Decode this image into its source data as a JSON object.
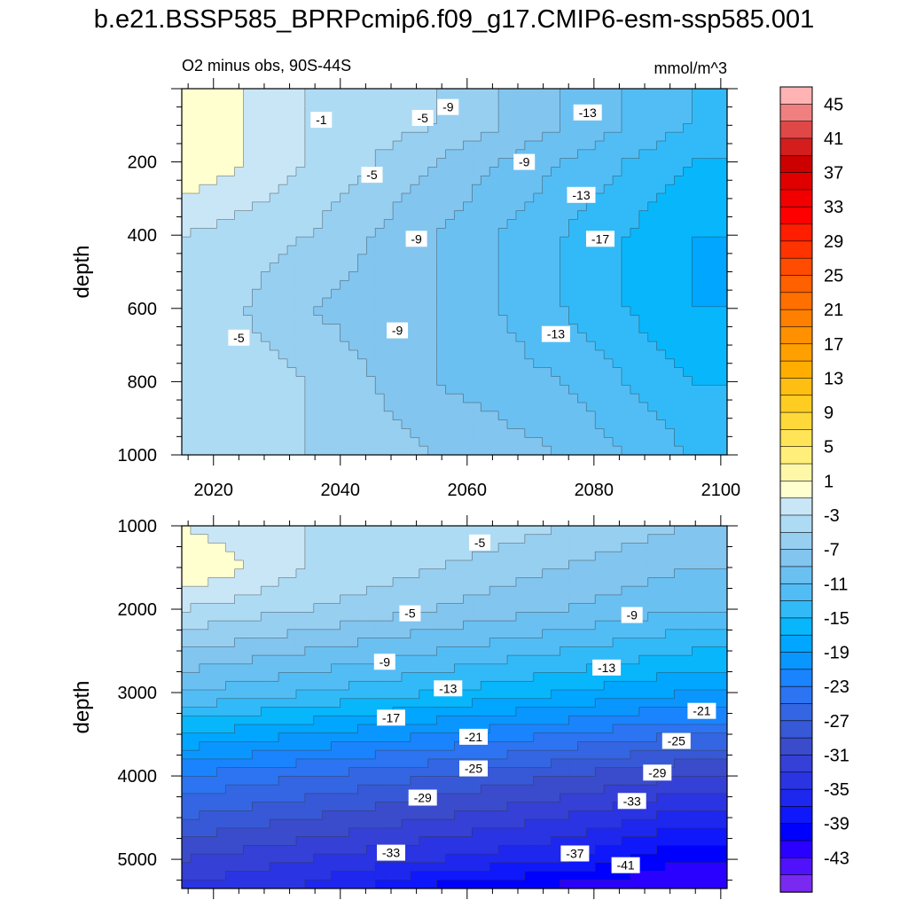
{
  "page": {
    "title": "b.e21.BSSP585_BPRPcmip6.f09_g17.CMIP6-esm-ssp585.001"
  },
  "chart_data": [
    {
      "type": "contour",
      "panel": "upper",
      "title_left": "O2 minus obs, 90S-44S",
      "title_right": "mmol/m^3",
      "xlabel": "",
      "ylabel": "depth",
      "xlim": [
        2015,
        2101
      ],
      "ylim": [
        1000,
        0
      ],
      "xticks": [
        2020,
        2040,
        2060,
        2080,
        2100
      ],
      "yticks": [
        200,
        400,
        600,
        800,
        1000
      ],
      "x": [
        2015,
        2035,
        2055,
        2075,
        2095
      ],
      "depth": [
        100,
        200,
        400,
        600,
        800,
        1000
      ],
      "values": [
        [
          1,
          -3,
          -5,
          -9,
          -13
        ],
        [
          1,
          -3,
          -7,
          -11,
          -15
        ],
        [
          -3,
          -5,
          -9,
          -13,
          -17
        ],
        [
          -3,
          -7,
          -9,
          -13,
          -17
        ],
        [
          -3,
          -5,
          -9,
          -11,
          -15
        ],
        [
          -3,
          -5,
          -7,
          -9,
          -13
        ]
      ],
      "contour_labels": [
        {
          "text": "-1",
          "x": 2037,
          "depth": 85
        },
        {
          "text": "-5",
          "x": 2053,
          "depth": 80
        },
        {
          "text": "-9",
          "x": 2057,
          "depth": 50
        },
        {
          "text": "-13",
          "x": 2079,
          "depth": 65
        },
        {
          "text": "-5",
          "x": 2045,
          "depth": 235
        },
        {
          "text": "-9",
          "x": 2069,
          "depth": 200
        },
        {
          "text": "-13",
          "x": 2078,
          "depth": 290
        },
        {
          "text": "-9",
          "x": 2052,
          "depth": 410
        },
        {
          "text": "-17",
          "x": 2081,
          "depth": 410
        },
        {
          "text": "-5",
          "x": 2024,
          "depth": 680
        },
        {
          "text": "-9",
          "x": 2049,
          "depth": 660
        },
        {
          "text": "-13",
          "x": 2074,
          "depth": 670
        }
      ]
    },
    {
      "type": "contour",
      "panel": "lower",
      "xlabel": "",
      "ylabel": "depth",
      "xlim": [
        2015,
        2101
      ],
      "ylim": [
        5350,
        1000
      ],
      "xticks": [
        2020,
        2040,
        2060,
        2080,
        2100
      ],
      "yticks": [
        1000,
        2000,
        3000,
        4000,
        5000
      ],
      "x": [
        2015,
        2035,
        2055,
        2075,
        2095
      ],
      "depth": [
        1000,
        1500,
        2000,
        3000,
        4000,
        5000,
        5300
      ],
      "values": [
        [
          -1,
          -3,
          -3,
          -5,
          -7
        ],
        [
          1,
          -3,
          -5,
          -7,
          -9
        ],
        [
          -3,
          -5,
          -7,
          -9,
          -11
        ],
        [
          -11,
          -13,
          -15,
          -17,
          -19
        ],
        [
          -23,
          -25,
          -27,
          -29,
          -31
        ],
        [
          -31,
          -33,
          -35,
          -37,
          -41
        ],
        [
          -33,
          -35,
          -39,
          -41,
          -43
        ]
      ],
      "contour_labels": [
        {
          "text": "-5",
          "x": 2062,
          "depth": 1200
        },
        {
          "text": "-5",
          "x": 2051,
          "depth": 2050
        },
        {
          "text": "-9",
          "x": 2086,
          "depth": 2070
        },
        {
          "text": "-9",
          "x": 2047,
          "depth": 2630
        },
        {
          "text": "-13",
          "x": 2082,
          "depth": 2700
        },
        {
          "text": "-13",
          "x": 2057,
          "depth": 2950
        },
        {
          "text": "-17",
          "x": 2048,
          "depth": 3300
        },
        {
          "text": "-21",
          "x": 2097,
          "depth": 3220
        },
        {
          "text": "-21",
          "x": 2061,
          "depth": 3530
        },
        {
          "text": "-25",
          "x": 2093,
          "depth": 3580
        },
        {
          "text": "-25",
          "x": 2061,
          "depth": 3910
        },
        {
          "text": "-29",
          "x": 2090,
          "depth": 3960
        },
        {
          "text": "-29",
          "x": 2053,
          "depth": 4260
        },
        {
          "text": "-33",
          "x": 2086,
          "depth": 4300
        },
        {
          "text": "-33",
          "x": 2048,
          "depth": 4920
        },
        {
          "text": "-37",
          "x": 2077,
          "depth": 4930
        },
        {
          "text": "-41",
          "x": 2085,
          "depth": 5070
        }
      ]
    },
    {
      "type": "colorbar",
      "levels": [
        47,
        45,
        43,
        41,
        39,
        37,
        35,
        33,
        31,
        29,
        27,
        25,
        23,
        21,
        19,
        17,
        15,
        13,
        11,
        9,
        7,
        5,
        3,
        1,
        -1,
        -3,
        -5,
        -7,
        -9,
        -11,
        -13,
        -15,
        -17,
        -19,
        -21,
        -23,
        -25,
        -27,
        -29,
        -31,
        -33,
        -35,
        -37,
        -39,
        -41,
        -43,
        -45,
        -47
      ],
      "labels": [
        "45",
        "41",
        "37",
        "33",
        "29",
        "25",
        "21",
        "17",
        "13",
        "9",
        "5",
        "1",
        "-3",
        "-7",
        "-11",
        "-15",
        "-19",
        "-23",
        "-27",
        "-31",
        "-35",
        "-39",
        "-43"
      ],
      "colors": [
        "#FFB3B3",
        "#F08080",
        "#E04848",
        "#D41E1E",
        "#CC0000",
        "#E00000",
        "#F20000",
        "#FF0000",
        "#FF1E00",
        "#FF3300",
        "#FF4C00",
        "#FF6000",
        "#FF7000",
        "#FF8000",
        "#FF9000",
        "#FFA000",
        "#FFAE00",
        "#FFBE12",
        "#FFCC22",
        "#FFD93A",
        "#FFE457",
        "#FFEE7A",
        "#FFF7A8",
        "#FFFFD0",
        "#C9E6F6",
        "#AEDBF4",
        "#97CFF1",
        "#82C5EF",
        "#6BC0F2",
        "#52BDF5",
        "#32BAF8",
        "#08B6FB",
        "#00A6FF",
        "#0A96FF",
        "#1A84FF",
        "#2C74F2",
        "#3466E3",
        "#3759D7",
        "#3A4CCC",
        "#3540D6",
        "#2A34E2",
        "#1E27EE",
        "#0F18FA",
        "#0000FF",
        "#2A00FF",
        "#4F12FA",
        "#7A2AF0"
      ]
    }
  ]
}
